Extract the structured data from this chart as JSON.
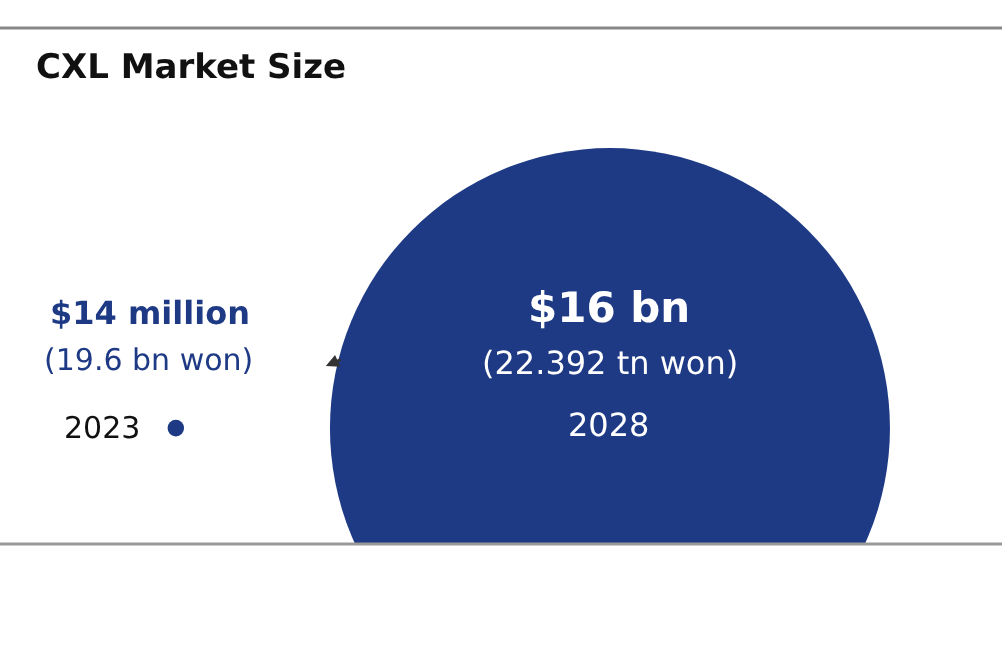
{
  "chart_data": {
    "type": "other",
    "title": "CXL Market Size",
    "categories": [
      "2023",
      "2028"
    ],
    "values": [
      14000000,
      16000000000
    ],
    "value_labels": [
      "$14 million\n(19.6 bn won)",
      "$16 bn\n(22.392 tn won)"
    ],
    "colors": [
      "#1e3a85",
      "#1e3a85"
    ]
  }
}
